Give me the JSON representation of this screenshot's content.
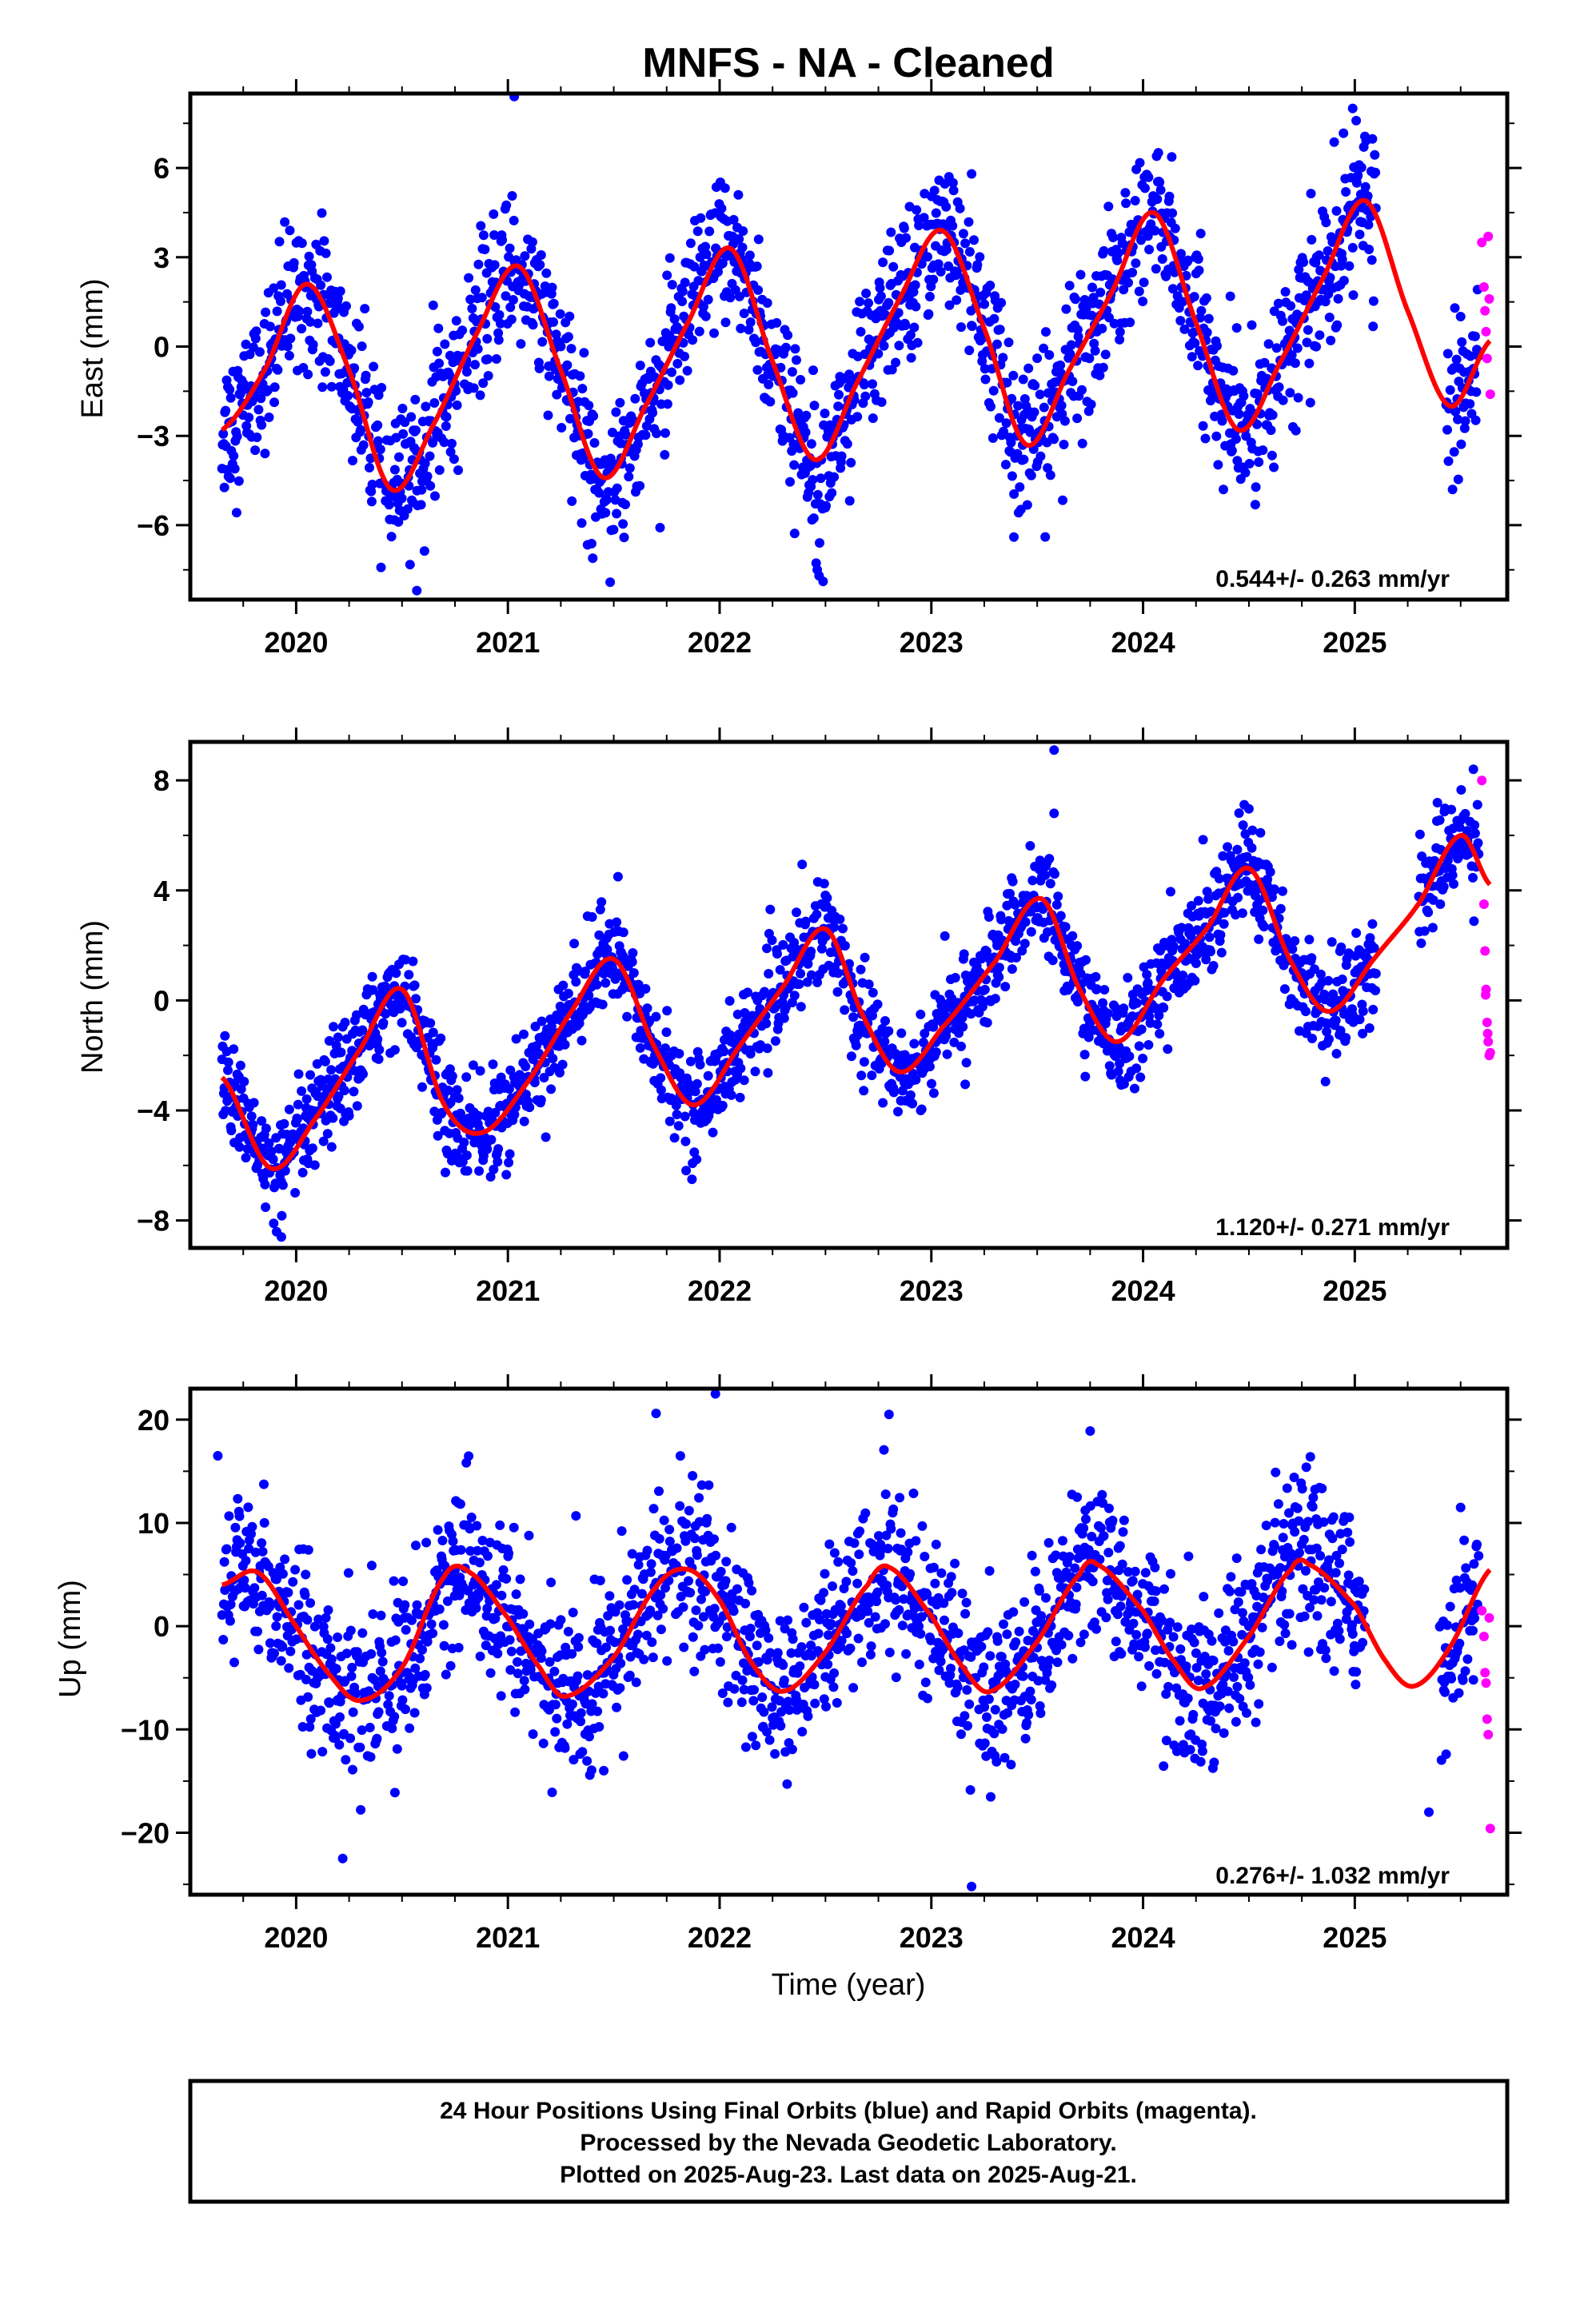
{
  "chart_data": {
    "type": "scatter",
    "title": "MNFS  - NA - Cleaned",
    "xlabel": "Time (year)",
    "x_ticks": [
      "2020",
      "2021",
      "2022",
      "2023",
      "2024",
      "2025"
    ],
    "xlim": [
      2019.5,
      2025.72
    ],
    "colors": {
      "final": "#0000ff",
      "rapid": "#ff00ff",
      "model": "#ff0000",
      "axis": "#000000"
    },
    "panels": [
      {
        "ylabel": "East (mm)",
        "ylim": [
          -8.5,
          8.5
        ],
        "yticks": [
          -6,
          -3,
          0,
          3,
          6
        ],
        "rate_label": "0.544+/- 0.263 mm/yr",
        "trend_rate": 0.544,
        "model_knots": [
          [
            2019.65,
            -2.8
          ],
          [
            2019.85,
            -0.8
          ],
          [
            2020.05,
            2.1
          ],
          [
            2020.25,
            -0.8
          ],
          [
            2020.45,
            -4.8
          ],
          [
            2020.65,
            -2.6
          ],
          [
            2020.85,
            0.4
          ],
          [
            2021.05,
            2.7
          ],
          [
            2021.25,
            -0.8
          ],
          [
            2021.45,
            -4.4
          ],
          [
            2021.65,
            -2.0
          ],
          [
            2021.85,
            0.8
          ],
          [
            2022.05,
            3.3
          ],
          [
            2022.25,
            -0.5
          ],
          [
            2022.45,
            -3.8
          ],
          [
            2022.65,
            -1.2
          ],
          [
            2022.85,
            1.6
          ],
          [
            2023.05,
            3.9
          ],
          [
            2023.25,
            0.6
          ],
          [
            2023.45,
            -3.3
          ],
          [
            2023.65,
            -0.8
          ],
          [
            2023.85,
            1.8
          ],
          [
            2024.05,
            4.5
          ],
          [
            2024.25,
            0.8
          ],
          [
            2024.45,
            -2.8
          ],
          [
            2024.65,
            -0.5
          ],
          [
            2024.85,
            2.3
          ],
          [
            2025.05,
            4.9
          ],
          [
            2025.25,
            1.2
          ],
          [
            2025.45,
            -2.0
          ],
          [
            2025.64,
            0.2
          ]
        ],
        "scatter_sd": 1.25,
        "gap": [
          2025.1,
          2025.43
        ],
        "outliers": [
          [
            2019.97,
            3.9
          ],
          [
            2020.57,
            -8.2
          ],
          [
            2021.03,
            8.4
          ],
          [
            2022.47,
            -7.7
          ],
          [
            2023.39,
            -6.4
          ],
          [
            2024.99,
            8.0
          ],
          [
            2023.19,
            5.8
          ]
        ],
        "rapid_points": [
          [
            2025.6,
            3.5
          ],
          [
            2025.61,
            2.0
          ],
          [
            2025.615,
            1.2
          ],
          [
            2025.62,
            0.5
          ],
          [
            2025.625,
            -0.4
          ],
          [
            2025.63,
            3.7
          ],
          [
            2025.64,
            -1.6
          ],
          [
            2025.635,
            1.6
          ]
        ]
      },
      {
        "ylabel": "North (mm)",
        "ylim": [
          -9,
          9.4
        ],
        "yticks": [
          -8,
          -4,
          0,
          4,
          8
        ],
        "rate_label": "1.120+/- 0.271 mm/yr",
        "trend_rate": 1.12,
        "model_knots": [
          [
            2019.65,
            -2.8
          ],
          [
            2019.88,
            -6.1
          ],
          [
            2020.1,
            -4.2
          ],
          [
            2020.3,
            -1.8
          ],
          [
            2020.5,
            0.4
          ],
          [
            2020.7,
            -3.8
          ],
          [
            2020.88,
            -4.8
          ],
          [
            2021.1,
            -2.9
          ],
          [
            2021.3,
            -0.4
          ],
          [
            2021.5,
            1.5
          ],
          [
            2021.7,
            -1.8
          ],
          [
            2021.88,
            -3.8
          ],
          [
            2022.1,
            -1.6
          ],
          [
            2022.3,
            0.5
          ],
          [
            2022.5,
            2.6
          ],
          [
            2022.68,
            -0.6
          ],
          [
            2022.85,
            -2.6
          ],
          [
            2023.05,
            -1.0
          ],
          [
            2023.3,
            1.4
          ],
          [
            2023.52,
            3.7
          ],
          [
            2023.7,
            0.4
          ],
          [
            2023.88,
            -1.5
          ],
          [
            2024.1,
            0.8
          ],
          [
            2024.3,
            2.6
          ],
          [
            2024.5,
            4.8
          ],
          [
            2024.7,
            1.4
          ],
          [
            2024.88,
            -0.4
          ],
          [
            2025.1,
            1.6
          ],
          [
            2025.3,
            3.5
          ],
          [
            2025.5,
            6.0
          ],
          [
            2025.64,
            4.2
          ]
        ],
        "scatter_sd": 0.9,
        "gap": [
          2025.1,
          2025.3
        ],
        "outliers": [
          [
            2023.58,
            9.1
          ],
          [
            2019.93,
            -8.6
          ],
          [
            2021.52,
            4.5
          ],
          [
            2023.58,
            6.8
          ],
          [
            2022.95,
            -4.0
          ]
        ],
        "rapid_points": [
          [
            2025.6,
            8.0
          ],
          [
            2025.61,
            3.5
          ],
          [
            2025.615,
            1.8
          ],
          [
            2025.62,
            0.4
          ],
          [
            2025.625,
            -0.8
          ],
          [
            2025.63,
            -1.5
          ],
          [
            2025.635,
            -2.0
          ],
          [
            2025.64,
            -1.9
          ],
          [
            2025.618,
            0.2
          ],
          [
            2025.628,
            -1.2
          ]
        ]
      },
      {
        "ylabel": "Up (mm)",
        "ylim": [
          -26,
          23
        ],
        "yticks": [
          -20,
          -10,
          0,
          10,
          20
        ],
        "rate_label": "0.276+/- 1.032 mm/yr",
        "trend_rate": 0.276,
        "model_knots": [
          [
            2019.65,
            4.0
          ],
          [
            2019.82,
            5.2
          ],
          [
            2020.0,
            0.0
          ],
          [
            2020.15,
            -4.5
          ],
          [
            2020.3,
            -7.2
          ],
          [
            2020.5,
            -4.0
          ],
          [
            2020.7,
            4.8
          ],
          [
            2020.82,
            5.2
          ],
          [
            2021.0,
            0.8
          ],
          [
            2021.15,
            -4.0
          ],
          [
            2021.27,
            -6.8
          ],
          [
            2021.5,
            -3.0
          ],
          [
            2021.7,
            3.8
          ],
          [
            2021.85,
            5.5
          ],
          [
            2022.0,
            2.5
          ],
          [
            2022.15,
            -3.5
          ],
          [
            2022.3,
            -6.3
          ],
          [
            2022.5,
            -2.5
          ],
          [
            2022.7,
            4.0
          ],
          [
            2022.8,
            5.7
          ],
          [
            2023.0,
            1.0
          ],
          [
            2023.15,
            -4.0
          ],
          [
            2023.28,
            -6.3
          ],
          [
            2023.5,
            -1.5
          ],
          [
            2023.7,
            5.0
          ],
          [
            2023.78,
            6.0
          ],
          [
            2024.0,
            1.5
          ],
          [
            2024.15,
            -3.5
          ],
          [
            2024.28,
            -6.0
          ],
          [
            2024.5,
            -1.0
          ],
          [
            2024.7,
            5.5
          ],
          [
            2024.78,
            6.0
          ],
          [
            2025.0,
            2.0
          ],
          [
            2025.15,
            -3.5
          ],
          [
            2025.28,
            -5.8
          ],
          [
            2025.45,
            -2.0
          ],
          [
            2025.64,
            5.5
          ]
        ],
        "scatter_sd": 4.0,
        "gap": [
          2025.05,
          2025.4
        ],
        "outliers": [
          [
            2021.98,
            22.5
          ],
          [
            2023.19,
            -25.2
          ],
          [
            2020.22,
            -22.5
          ],
          [
            2022.8,
            20.5
          ],
          [
            2021.7,
            20.6
          ],
          [
            2023.75,
            18.9
          ],
          [
            2019.63,
            16.5
          ],
          [
            2025.5,
            11.5
          ],
          [
            2025.35,
            -18.0
          ]
        ],
        "rapid_points": [
          [
            2025.6,
            1.5
          ],
          [
            2025.61,
            -1.0
          ],
          [
            2025.615,
            -4.5
          ],
          [
            2025.62,
            -5.5
          ],
          [
            2025.625,
            -9.0
          ],
          [
            2025.63,
            -10.5
          ],
          [
            2025.64,
            -19.6
          ],
          [
            2025.635,
            0.8
          ]
        ]
      }
    ],
    "footer": [
      "24 Hour Positions Using Final Orbits (blue) and Rapid Orbits (magenta).",
      "Processed by the Nevada Geodetic Laboratory.",
      "Plotted on 2025-Aug-23. Last data on 2025-Aug-21."
    ]
  }
}
